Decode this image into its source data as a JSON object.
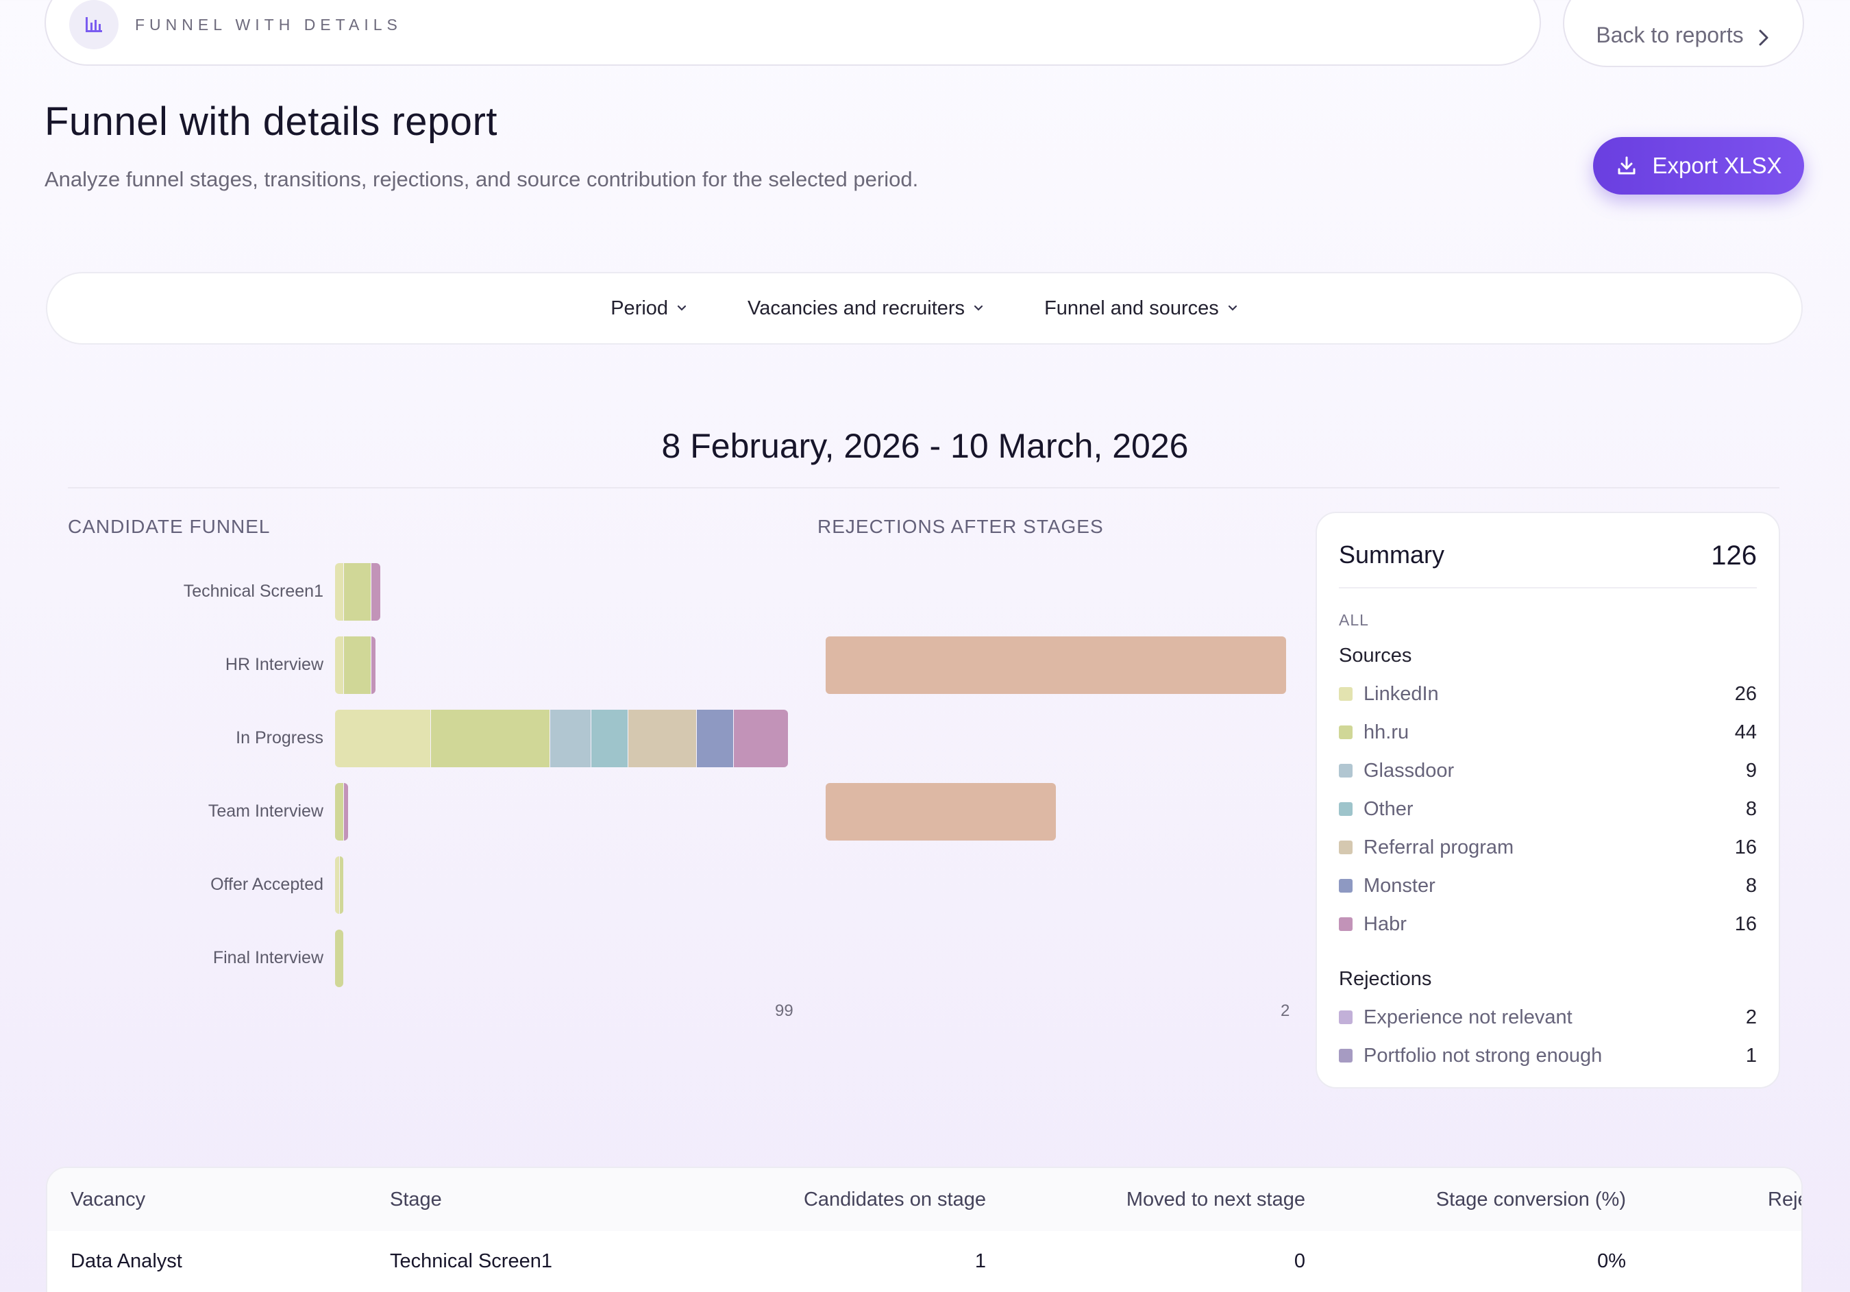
{
  "breadcrumb": {
    "label": "FUNNEL WITH DETAILS"
  },
  "back_button": {
    "label": "Back to reports"
  },
  "header": {
    "title": "Funnel with details report",
    "subtitle": "Analyze funnel stages, transitions, rejections, and source contribution for the selected period."
  },
  "export_button": {
    "label": "Export XLSX"
  },
  "filters": [
    {
      "label": "Period"
    },
    {
      "label": "Vacancies and recruiters"
    },
    {
      "label": "Funnel and sources"
    }
  ],
  "period": {
    "label": "8 February, 2026 - 10 March, 2026"
  },
  "colors": {
    "LinkedIn": "#e3e3b0",
    "hh.ru": "#d0d797",
    "Glassdoor": "#b1c6d1",
    "Other": "#9ec4cb",
    "Referral program": "#d5c8b0",
    "Monster": "#8e99c2",
    "Habr": "#c293b8",
    "rejection": "#ddb8a4",
    "Experience not relevant": "#c2b0d8",
    "Portfolio not strong enough": "#a69bc2",
    "accent": "#6a3fe0"
  },
  "chart_data": [
    {
      "type": "bar",
      "orientation": "horizontal",
      "stacked": true,
      "title": "CANDIDATE FUNNEL",
      "categories": [
        "Technical Screen1",
        "HR Interview",
        "In Progress",
        "Team Interview",
        "Offer Accepted",
        "Final Interview"
      ],
      "series": [
        {
          "name": "LinkedIn",
          "values": [
            2,
            2,
            21,
            0,
            1,
            0
          ]
        },
        {
          "name": "hh.ru",
          "values": [
            6,
            6,
            26,
            2,
            1,
            2
          ]
        },
        {
          "name": "Glassdoor",
          "values": [
            0,
            0,
            9,
            0,
            0,
            0
          ]
        },
        {
          "name": "Other",
          "values": [
            0,
            0,
            8,
            0,
            0,
            0
          ]
        },
        {
          "name": "Referral program",
          "values": [
            0,
            0,
            15,
            0,
            0,
            0
          ]
        },
        {
          "name": "Monster",
          "values": [
            0,
            0,
            8,
            0,
            0,
            0
          ]
        },
        {
          "name": "Habr",
          "values": [
            2,
            1,
            12,
            1,
            0,
            0
          ]
        }
      ],
      "xlim": [
        0,
        99
      ],
      "x_tick_labels": [
        "99"
      ]
    },
    {
      "type": "bar",
      "orientation": "horizontal",
      "title": "REJECTIONS AFTER STAGES",
      "categories": [
        "Technical Screen1",
        "HR Interview",
        "In Progress",
        "Team Interview",
        "Offer Accepted",
        "Final Interview"
      ],
      "values": [
        0,
        2,
        0,
        1,
        0,
        0
      ],
      "xlim": [
        0,
        2
      ],
      "x_tick_labels": [
        "2"
      ]
    }
  ],
  "summary": {
    "title": "Summary",
    "total": "126",
    "scope": "ALL",
    "sources_label": "Sources",
    "sources": [
      {
        "name": "LinkedIn",
        "value": "26"
      },
      {
        "name": "hh.ru",
        "value": "44"
      },
      {
        "name": "Glassdoor",
        "value": "9"
      },
      {
        "name": "Other",
        "value": "8"
      },
      {
        "name": "Referral program",
        "value": "16"
      },
      {
        "name": "Monster",
        "value": "8"
      },
      {
        "name": "Habr",
        "value": "16"
      }
    ],
    "rejections_label": "Rejections",
    "rejections": [
      {
        "name": "Experience not relevant",
        "value": "2"
      },
      {
        "name": "Portfolio not strong enough",
        "value": "1"
      }
    ]
  },
  "table": {
    "columns": [
      "Vacancy",
      "Stage",
      "Candidates on stage",
      "Moved to next stage",
      "Stage conversion (%)",
      "Reje"
    ],
    "rows": [
      [
        "Data Analyst",
        "Technical Screen1",
        "1",
        "0",
        "0%",
        ""
      ]
    ]
  }
}
